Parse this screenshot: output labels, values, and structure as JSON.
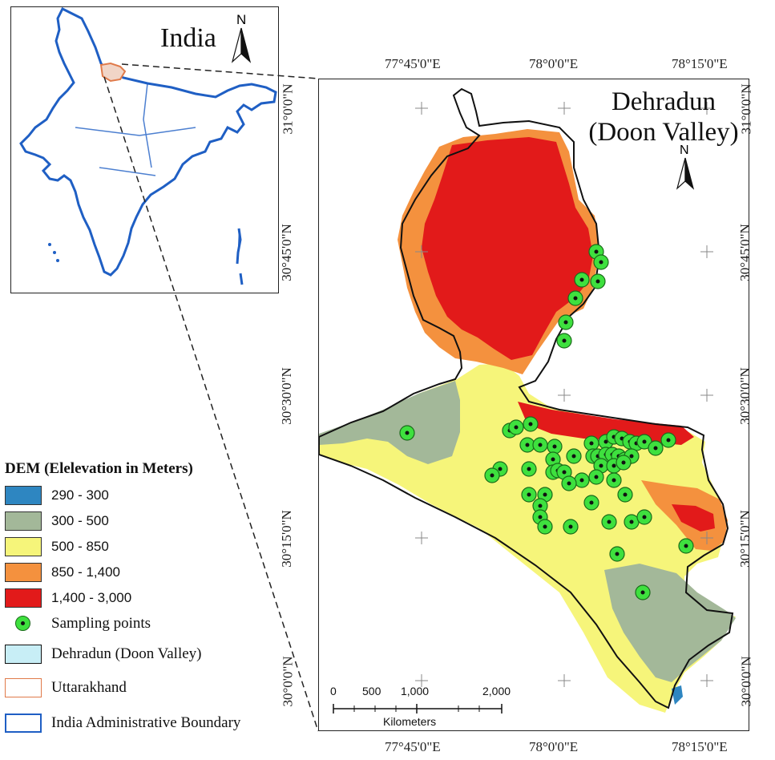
{
  "inset": {
    "title": "India",
    "north_label": "N"
  },
  "main_map": {
    "title_line1": "Dehradun",
    "title_line2": "(Doon Valley)",
    "north_label": "N",
    "top_labels": [
      "77°45'0\"E",
      "78°0'0\"E",
      "78°15'0\"E"
    ],
    "bottom_labels": [
      "77°45'0\"E",
      "78°0'0\"E",
      "78°15'0\"E"
    ],
    "left_labels": [
      "31°0'0\"N",
      "30°45'0\"N",
      "30°30'0\"N",
      "30°15'0\"N",
      "30°0'0\"N"
    ],
    "right_labels": [
      "31°0'0\"N",
      "30°45'0\"N",
      "30°30'0\"N",
      "30°15'0\"N",
      "30°0'0\"N"
    ]
  },
  "scale": {
    "ticks": [
      "0",
      "500",
      "1,000",
      "2,000"
    ],
    "unit": "Kilometers"
  },
  "legend": {
    "title": "DEM (Elelevation in Meters)",
    "dem_classes": [
      {
        "label": "290 - 300",
        "color": "#2e86c1"
      },
      {
        "label": "300 - 500",
        "color": "#a3b899"
      },
      {
        "label": "500 - 850",
        "color": "#f6f57a"
      },
      {
        "label": "850 - 1,400",
        "color": "#f4913e"
      },
      {
        "label": "1,400 - 3,000",
        "color": "#e21a1a"
      }
    ],
    "sampling": "Sampling points",
    "doon": "Dehradun (Doon Valley)",
    "uttarakhand": "Uttarakhand",
    "india": "India Administrative Boundary"
  },
  "colors": {
    "sampling_fill": "#3ee03e",
    "doon_fill": "#c8eef6",
    "uttarakhand_stroke": "#e07a4a",
    "india_stroke": "#1f5fc4"
  }
}
